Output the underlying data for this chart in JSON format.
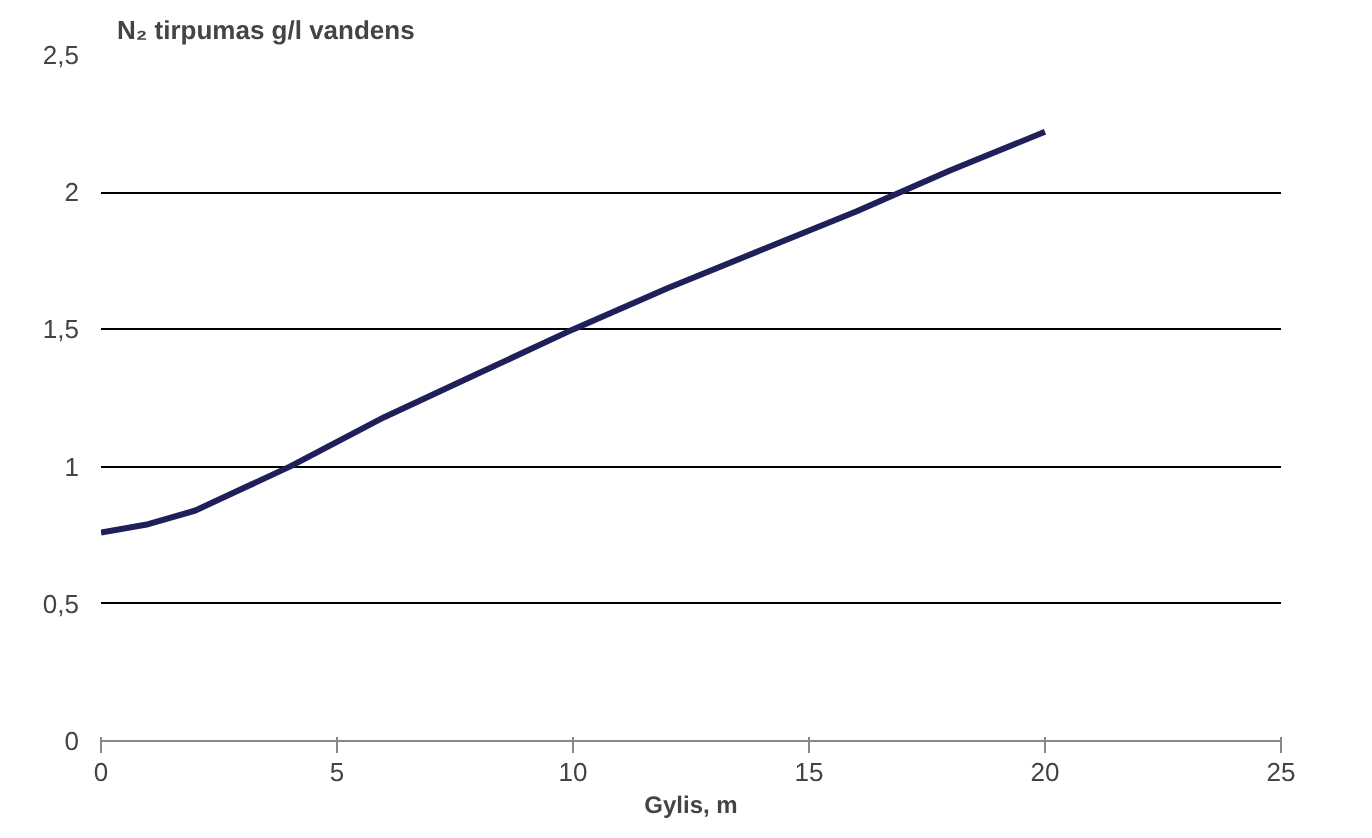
{
  "chart_data": {
    "type": "line",
    "ylabel": "N₂ tirpumas g/l vandens",
    "xlabel": "Gylis, m",
    "x": [
      0,
      1,
      2,
      3,
      4,
      5,
      6,
      7,
      8,
      10,
      12,
      14,
      16,
      18,
      20
    ],
    "series": [
      {
        "color": "#1f1f5a",
        "values": [
          0.76,
          0.79,
          0.84,
          0.92,
          1.0,
          1.09,
          1.18,
          1.26,
          1.34,
          1.5,
          1.65,
          1.79,
          1.93,
          2.08,
          2.22
        ]
      }
    ],
    "xlim": [
      0,
      25
    ],
    "xticks": [
      0,
      5,
      10,
      15,
      20,
      25
    ],
    "ylim": [
      0,
      2.5
    ],
    "yticks": [
      0,
      {
        "value": 0.5,
        "label": "0,5"
      },
      1,
      {
        "value": 1.5,
        "label": "1,5"
      },
      2,
      {
        "value": 2.5,
        "label": "2,5"
      }
    ],
    "grid": "y",
    "marker": "none",
    "line_style": "solid"
  }
}
